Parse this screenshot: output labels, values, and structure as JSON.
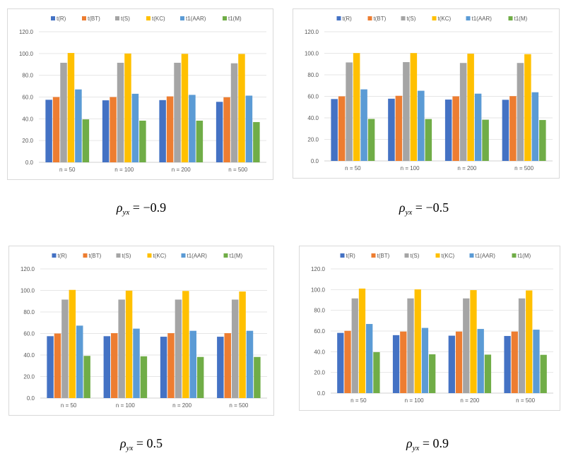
{
  "colors": {
    "t_R": "#4472C4",
    "t_BT": "#ED7D31",
    "t_S": "#A5A5A5",
    "t_KC": "#FFC000",
    "t1_AAR": "#5B9BD5",
    "t1_M": "#70AD47",
    "grid": "#e6e6e6",
    "text": "#595959"
  },
  "chart_data": [
    {
      "type": "bar",
      "caption": {
        "symbol": "ρ",
        "subscript": "yx",
        "value": "= −0.9"
      },
      "categories": [
        "n = 50",
        "n = 100",
        "n = 200",
        "n = 500"
      ],
      "ylim": [
        0,
        120
      ],
      "yticks": [
        "0.0",
        "20.0",
        "40.0",
        "60.0",
        "80.0",
        "100.0",
        "120.0"
      ],
      "series": [
        {
          "name": "t(R)",
          "values": [
            57.5,
            57.0,
            57.2,
            55.6
          ]
        },
        {
          "name": "t(BT)",
          "values": [
            60.0,
            60.0,
            60.6,
            59.8
          ]
        },
        {
          "name": "t(S)",
          "values": [
            91.5,
            91.5,
            91.5,
            91.0
          ]
        },
        {
          "name": "t(KC)",
          "values": [
            100.5,
            100.0,
            99.7,
            99.6
          ]
        },
        {
          "name": "t1(AAR)",
          "values": [
            67.0,
            63.0,
            62.0,
            61.3
          ]
        },
        {
          "name": "t1(M)",
          "values": [
            39.5,
            38.3,
            38.3,
            37.0
          ]
        }
      ]
    },
    {
      "type": "bar",
      "caption": {
        "symbol": "ρ",
        "subscript": "yx",
        "value": "= −0.5"
      },
      "categories": [
        "n = 50",
        "n = 100",
        "n = 200",
        "n = 500"
      ],
      "ylim": [
        0,
        120
      ],
      "yticks": [
        "0.0",
        "20.0",
        "40.0",
        "60.0",
        "80.0",
        "100.0",
        "120.0"
      ],
      "series": [
        {
          "name": "t(R)",
          "values": [
            57.5,
            57.8,
            57.0,
            56.8
          ]
        },
        {
          "name": "t(BT)",
          "values": [
            60.0,
            60.5,
            60.0,
            60.2
          ]
        },
        {
          "name": "t(S)",
          "values": [
            91.5,
            91.8,
            91.0,
            91.0
          ]
        },
        {
          "name": "t(KC)",
          "values": [
            100.2,
            100.2,
            99.6,
            99.2
          ]
        },
        {
          "name": "t1(AAR)",
          "values": [
            66.5,
            65.2,
            62.5,
            63.8
          ]
        },
        {
          "name": "t1(M)",
          "values": [
            39.0,
            38.9,
            38.3,
            38.0
          ]
        }
      ]
    },
    {
      "type": "bar",
      "caption": {
        "symbol": "ρ",
        "subscript": "yx",
        "value": "= 0.5"
      },
      "categories": [
        "n = 50",
        "n = 100",
        "n = 200",
        "n = 500"
      ],
      "ylim": [
        0,
        120
      ],
      "yticks": [
        "0.0",
        "20.0",
        "40.0",
        "60.0",
        "80.0",
        "100.0",
        "120.0"
      ],
      "series": [
        {
          "name": "t(R)",
          "values": [
            57.5,
            57.5,
            57.0,
            57.0
          ]
        },
        {
          "name": "t(BT)",
          "values": [
            60.0,
            60.3,
            60.3,
            60.3
          ]
        },
        {
          "name": "t(S)",
          "values": [
            91.5,
            91.5,
            91.5,
            91.5
          ]
        },
        {
          "name": "t(KC)",
          "values": [
            100.5,
            99.8,
            99.5,
            99.0
          ]
        },
        {
          "name": "t1(AAR)",
          "values": [
            67.3,
            64.5,
            62.5,
            62.5
          ]
        },
        {
          "name": "t1(M)",
          "values": [
            39.2,
            38.8,
            38.2,
            38.2
          ]
        }
      ]
    },
    {
      "type": "bar",
      "caption": {
        "symbol": "ρ",
        "subscript": "yx",
        "value": "= 0.9"
      },
      "categories": [
        "n = 50",
        "n = 100",
        "n = 200",
        "n = 500"
      ],
      "ylim": [
        0,
        120
      ],
      "yticks": [
        "0.0",
        "20.0",
        "40.0",
        "60.0",
        "80.0",
        "100.0",
        "120.0"
      ],
      "series": [
        {
          "name": "t(R)",
          "values": [
            58.2,
            56.0,
            55.5,
            55.2
          ]
        },
        {
          "name": "t(BT)",
          "values": [
            60.2,
            59.5,
            59.5,
            59.5
          ]
        },
        {
          "name": "t(S)",
          "values": [
            91.5,
            91.5,
            91.5,
            91.5
          ]
        },
        {
          "name": "t(KC)",
          "values": [
            101.0,
            100.2,
            99.5,
            99.2
          ]
        },
        {
          "name": "t1(AAR)",
          "values": [
            66.8,
            63.0,
            62.0,
            61.3
          ]
        },
        {
          "name": "t1(M)",
          "values": [
            39.6,
            37.5,
            37.2,
            37.0
          ]
        }
      ]
    }
  ]
}
